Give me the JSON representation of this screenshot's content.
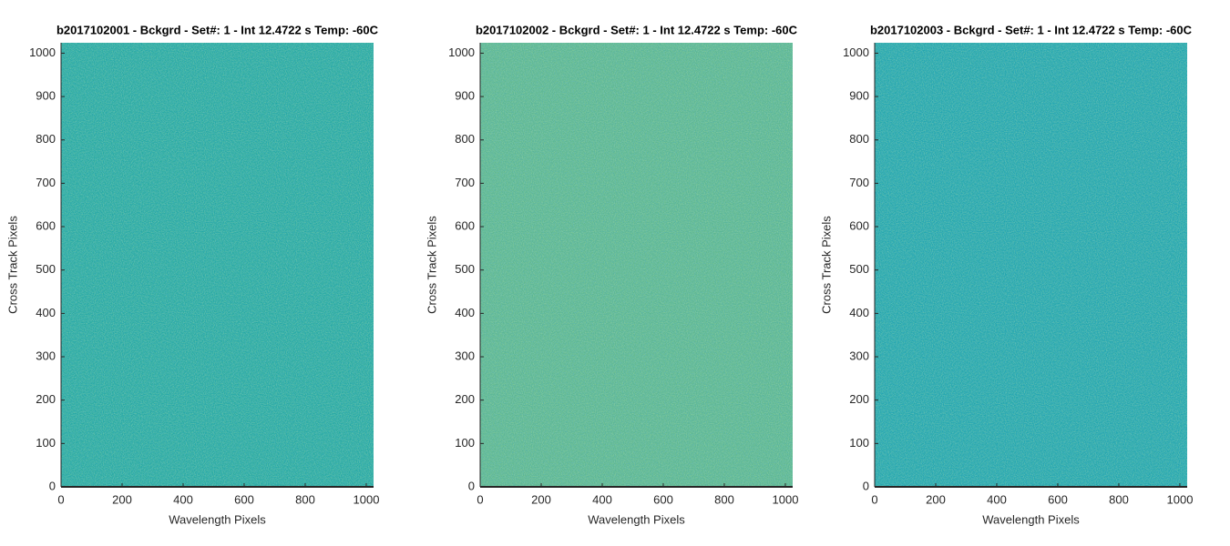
{
  "chart_data": [
    {
      "type": "image",
      "title": "b2017102001 - Bckgrd - Set#: 1 - Int 12.4722 s Temp: -60C",
      "xlabel": "Wavelength Pixels",
      "ylabel": "Cross Track Pixels",
      "color": "#26a9a3",
      "xlim": [
        0,
        1024
      ],
      "ylim": [
        0,
        1024
      ],
      "xticks": [
        0,
        200,
        400,
        600,
        800,
        1000
      ],
      "yticks": [
        0,
        100,
        200,
        300,
        400,
        500,
        600,
        700,
        800,
        900,
        1000
      ]
    },
    {
      "type": "image",
      "title": "b2017102002 - Bckgrd - Set#: 1 - Int 12.4722 s Temp: -60C",
      "xlabel": "Wavelength Pixels",
      "ylabel": "Cross Track Pixels",
      "color": "#5db791",
      "xlim": [
        0,
        1024
      ],
      "ylim": [
        0,
        1024
      ],
      "xticks": [
        0,
        200,
        400,
        600,
        800,
        1000
      ],
      "yticks": [
        0,
        100,
        200,
        300,
        400,
        500,
        600,
        700,
        800,
        900,
        1000
      ]
    },
    {
      "type": "image",
      "title": "b2017102003 - Bckgrd - Set#: 1 - Int 12.4722 s Temp: -60C",
      "xlabel": "Wavelength Pixels",
      "ylabel": "Cross Track Pixels",
      "color": "#22a6ae",
      "xlim": [
        0,
        1024
      ],
      "ylim": [
        0,
        1024
      ],
      "xticks": [
        0,
        200,
        400,
        600,
        800,
        1000
      ],
      "yticks": [
        0,
        100,
        200,
        300,
        400,
        500,
        600,
        700,
        800,
        900,
        1000
      ]
    }
  ]
}
